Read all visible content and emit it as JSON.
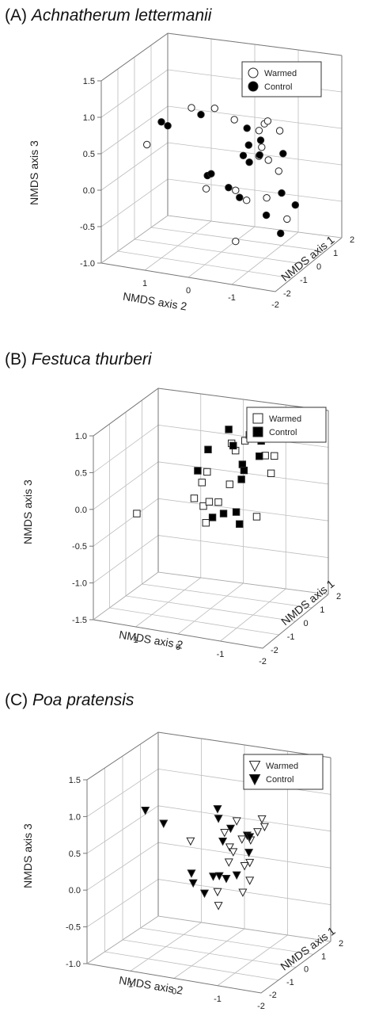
{
  "chart_data": [
    {
      "type": "scatter",
      "panel_label": "(A)",
      "species": "Achnatherum  lettermanii",
      "marker": "circle",
      "xlabel": "NMDS axis 1",
      "ylabel": "NMDS axis 2",
      "zlabel": "NMDS axis 3",
      "x_ticks": [
        "2",
        "1",
        "0",
        "-1",
        "-2"
      ],
      "y_ticks": [
        "1",
        "0",
        "-1",
        "-2"
      ],
      "z_ticks": [
        "1.5",
        "1.0",
        "0.5",
        "0.0",
        "-0.5",
        "-1.0"
      ],
      "xlim": [
        -2,
        2
      ],
      "ylim": [
        -2,
        2
      ],
      "zlim": [
        -1.0,
        1.5
      ],
      "legend": [
        "Warmed",
        "Control"
      ],
      "legend_position": "top-right",
      "grid": true,
      "series": [
        {
          "name": "Warmed",
          "fill": "#ffffff",
          "points": [
            [
              -0.3,
              1.6,
              0.35
            ],
            [
              -0.5,
              0.5,
              1.0
            ],
            [
              -1.2,
              -0.3,
              1.2
            ],
            [
              -0.8,
              -0.6,
              1.0
            ],
            [
              -0.3,
              -1.1,
              0.9
            ],
            [
              -0.1,
              -1.1,
              0.9
            ],
            [
              -0.1,
              -0.9,
              0.75
            ],
            [
              0.1,
              -1.3,
              0.75
            ],
            [
              -0.2,
              -1.0,
              0.55
            ],
            [
              -0.1,
              -0.9,
              0.4
            ],
            [
              0.2,
              -1.0,
              0.3
            ],
            [
              0.3,
              -1.2,
              0.15
            ],
            [
              -0.4,
              0.2,
              -0.1
            ],
            [
              -0.2,
              -0.4,
              -0.1
            ],
            [
              0.1,
              -1.0,
              -0.2
            ],
            [
              0.2,
              -0.5,
              -0.3
            ],
            [
              0.8,
              -1.2,
              -0.6
            ],
            [
              -0.2,
              -0.4,
              -0.8
            ]
          ]
        },
        {
          "name": "Control",
          "fill": "#000000",
          "points": [
            [
              -1.0,
              1.0,
              0.85
            ],
            [
              -1.4,
              0.7,
              0.9
            ],
            [
              -1.5,
              -0.1,
              1.15
            ],
            [
              -0.3,
              -0.7,
              0.8
            ],
            [
              0.0,
              -0.9,
              0.6
            ],
            [
              0.0,
              -0.5,
              0.35
            ],
            [
              -0.2,
              -0.7,
              0.55
            ],
            [
              0.2,
              -0.8,
              0.35
            ],
            [
              0.1,
              -0.6,
              0.25
            ],
            [
              0.3,
              -1.3,
              0.4
            ],
            [
              0.2,
              0.4,
              -0.05
            ],
            [
              -0.1,
              0.2,
              0.05
            ],
            [
              -0.1,
              -0.2,
              -0.1
            ],
            [
              0.3,
              -0.3,
              -0.3
            ],
            [
              1.0,
              -1.0,
              -0.3
            ],
            [
              0.6,
              -0.8,
              -0.55
            ],
            [
              1.3,
              -1.2,
              -0.5
            ],
            [
              1.2,
              -0.9,
              -0.9
            ]
          ]
        }
      ]
    },
    {
      "type": "scatter",
      "panel_label": "(B)",
      "species": "Festuca thurberi",
      "marker": "square",
      "xlabel": "NMDS axis 1",
      "ylabel": "NMDS axis 2",
      "zlabel": "NMDS axis 3",
      "x_ticks": [
        "2",
        "1",
        "0",
        "-1",
        "-2"
      ],
      "y_ticks": [
        "1",
        "0",
        "-1",
        "-2"
      ],
      "z_ticks": [
        "1.0",
        "0.5",
        "0.0",
        "-0.5",
        "-1.0",
        "-1.5"
      ],
      "xlim": [
        -2,
        2
      ],
      "ylim": [
        -2,
        2
      ],
      "zlim": [
        -1.5,
        1.0
      ],
      "legend": [
        "Warmed",
        "Control"
      ],
      "legend_position": "top-right",
      "grid": true,
      "series": [
        {
          "name": "Warmed",
          "fill": "#ffffff",
          "points": [
            [
              -0.9,
              1.4,
              -0.2
            ],
            [
              -0.5,
              0.2,
              0.05
            ],
            [
              -0.8,
              -0.1,
              0.35
            ],
            [
              -1.0,
              -0.3,
              0.55
            ],
            [
              -0.3,
              -0.7,
              0.75
            ],
            [
              -0.8,
              -0.8,
              0.95
            ],
            [
              -0.5,
              -1.0,
              0.95
            ],
            [
              -0.3,
              -1.2,
              1.0
            ],
            [
              -1.0,
              -1.3,
              1.15
            ],
            [
              -0.3,
              -1.4,
              0.75
            ],
            [
              0.0,
              -1.5,
              0.7
            ],
            [
              -0.2,
              -1.5,
              0.5
            ],
            [
              -0.4,
              -0.6,
              0.3
            ],
            [
              -0.3,
              0.0,
              -0.3
            ],
            [
              -0.2,
              0.1,
              -0.1
            ],
            [
              -0.1,
              0.0,
              -0.05
            ],
            [
              0.2,
              -0.1,
              -0.1
            ],
            [
              -0.3,
              -1.2,
              -0.1
            ]
          ]
        },
        {
          "name": "Control",
          "fill": "#000000",
          "points": [
            [
              -1.2,
              -0.4,
              0.9
            ],
            [
              -0.8,
              0.0,
              0.5
            ],
            [
              -0.2,
              -0.5,
              1.0
            ],
            [
              -0.7,
              -0.8,
              0.9
            ],
            [
              -0.4,
              -0.9,
              0.6
            ],
            [
              -0.3,
              -0.9,
              0.5
            ],
            [
              -0.2,
              -0.8,
              0.35
            ],
            [
              -0.9,
              -1.3,
              1.1
            ],
            [
              -0.8,
              -1.5,
              1.05
            ],
            [
              -0.4,
              -1.3,
              0.75
            ],
            [
              0.0,
              -0.3,
              -0.2
            ],
            [
              0.0,
              -0.6,
              -0.15
            ],
            [
              0.1,
              0.0,
              -0.3
            ],
            [
              0.2,
              -0.6,
              -0.35
            ]
          ]
        }
      ]
    },
    {
      "type": "scatter",
      "panel_label": "(C)",
      "species": "Poa pratensis",
      "marker": "triangle-down",
      "xlabel": "NMDS axis 1",
      "ylabel": "NMDS axis 2",
      "zlabel": "NMDS axis 3",
      "x_ticks": [
        "2",
        "1",
        "0",
        "-1",
        "-2"
      ],
      "y_ticks": [
        "1",
        "0",
        "-1",
        "-2"
      ],
      "z_ticks": [
        "1.5",
        "1.0",
        "0.5",
        "0.0",
        "-0.5",
        "-1.0"
      ],
      "xlim": [
        -2,
        2
      ],
      "ylim": [
        -2,
        2
      ],
      "zlim": [
        -1.0,
        1.5
      ],
      "legend": [
        "Warmed",
        "Control"
      ],
      "legend_position": "top-right",
      "grid": true,
      "series": [
        {
          "name": "Warmed",
          "fill": "#ffffff",
          "points": [
            [
              -0.8,
              0.1,
              0.65
            ],
            [
              -0.9,
              -1.0,
              1.05
            ],
            [
              -1.2,
              -1.7,
              1.2
            ],
            [
              -0.6,
              -0.6,
              0.8
            ],
            [
              -0.6,
              -1.0,
              0.75
            ],
            [
              -0.3,
              -0.6,
              0.55
            ],
            [
              -0.1,
              -1.0,
              0.65
            ],
            [
              -0.2,
              -1.2,
              0.8
            ],
            [
              0.2,
              -1.2,
              0.8
            ],
            [
              0.1,
              -0.9,
              0.3
            ],
            [
              -0.1,
              -0.6,
              0.45
            ],
            [
              -0.1,
              -0.5,
              0.3
            ],
            [
              0.3,
              -0.7,
              0.2
            ],
            [
              0.0,
              -0.2,
              -0.15
            ],
            [
              0.6,
              -0.7,
              -0.05
            ],
            [
              0.3,
              -0.1,
              -0.4
            ],
            [
              0.7,
              -0.5,
              -0.25
            ]
          ]
        },
        {
          "name": "Control",
          "fill": "#000000",
          "points": [
            [
              -1.9,
              0.7,
              1.2
            ],
            [
              -1.6,
              0.4,
              1.0
            ],
            [
              -1.5,
              -0.8,
              1.3
            ],
            [
              -0.7,
              -0.5,
              1.0
            ],
            [
              -0.7,
              -0.6,
              0.7
            ],
            [
              -0.5,
              -0.7,
              0.85
            ],
            [
              -0.3,
              -1.0,
              0.75
            ],
            [
              -0.2,
              -1.0,
              0.5
            ],
            [
              0.1,
              -0.9,
              0.65
            ],
            [
              -0.5,
              0.2,
              0.15
            ],
            [
              -0.4,
              0.2,
              0.0
            ],
            [
              0.0,
              -0.1,
              0.05
            ],
            [
              0.1,
              -0.2,
              0.05
            ],
            [
              0.0,
              -0.4,
              0.05
            ],
            [
              0.1,
              -0.6,
              0.1
            ],
            [
              0.0,
              0.1,
              -0.2
            ]
          ]
        }
      ]
    }
  ]
}
